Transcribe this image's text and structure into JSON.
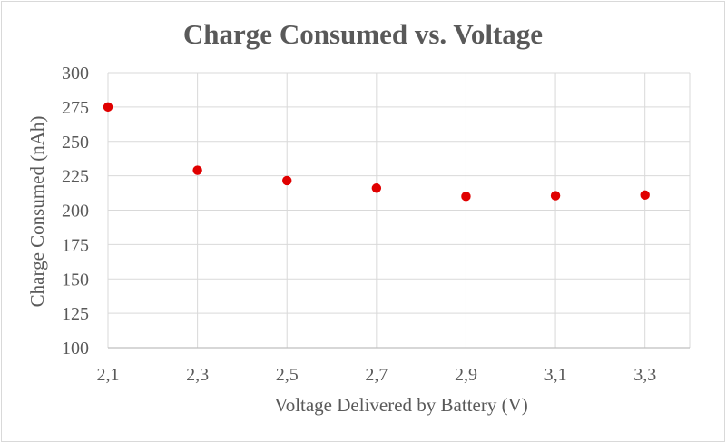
{
  "chart_data": {
    "type": "scatter",
    "title": "Charge Consumed vs. Voltage",
    "xlabel": "Voltage Delivered by Battery (V)",
    "ylabel": "Charge  Consumed (nAh)",
    "xlim": [
      2.1,
      3.4
    ],
    "ylim": [
      100,
      300
    ],
    "x_ticks": [
      2.1,
      2.3,
      2.5,
      2.7,
      2.9,
      3.1,
      3.3
    ],
    "x_tick_labels": [
      "2,1",
      "2,3",
      "2,5",
      "2,7",
      "2,9",
      "3,1",
      "3,3"
    ],
    "y_ticks": [
      100,
      125,
      150,
      175,
      200,
      225,
      250,
      275,
      300
    ],
    "y_tick_labels": [
      "100",
      "125",
      "150",
      "175",
      "200",
      "225",
      "250",
      "275",
      "300"
    ],
    "grid": true,
    "legend": "none",
    "marker_color": "#e00000",
    "grid_color": "#d9d9d9",
    "series": [
      {
        "x": [
          2.1,
          2.3,
          2.5,
          2.7,
          2.9,
          3.1,
          3.3
        ],
        "y": [
          275,
          229,
          221.5,
          216,
          210,
          210.5,
          211
        ]
      }
    ]
  }
}
